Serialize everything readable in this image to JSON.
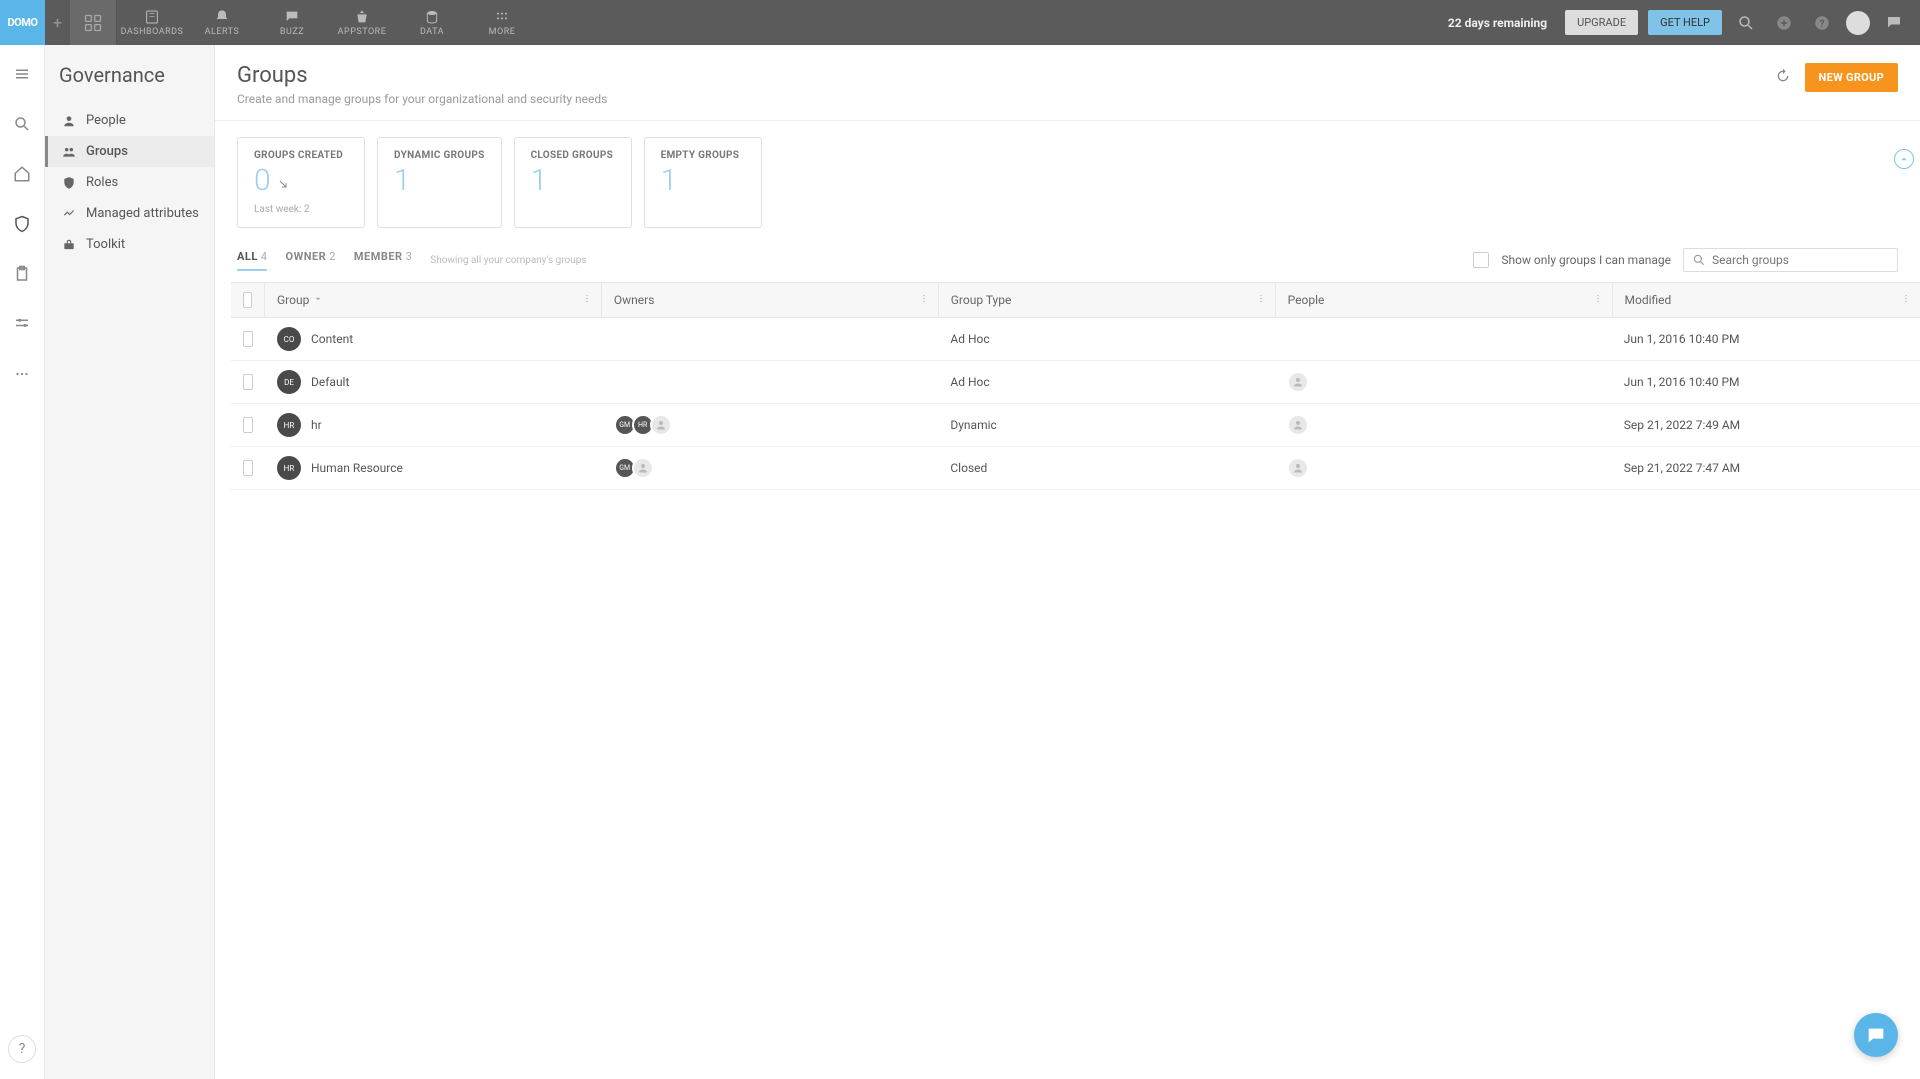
{
  "brand": "DOMO",
  "topnav": {
    "items": [
      {
        "label": "DASHBOARDS"
      },
      {
        "label": "ALERTS"
      },
      {
        "label": "BUZZ"
      },
      {
        "label": "APPSTORE"
      },
      {
        "label": "DATA"
      },
      {
        "label": "MORE"
      }
    ]
  },
  "trial": {
    "remaining": "22 days remaining",
    "upgrade": "UPGRADE",
    "gethelp": "GET HELP"
  },
  "sidebar": {
    "title": "Governance",
    "items": [
      {
        "label": "People"
      },
      {
        "label": "Groups"
      },
      {
        "label": "Roles"
      },
      {
        "label": "Managed attributes"
      },
      {
        "label": "Toolkit"
      }
    ]
  },
  "page": {
    "title": "Groups",
    "subtitle": "Create and manage groups for your organizational and security needs",
    "new_button": "NEW GROUP"
  },
  "stats": [
    {
      "label": "GROUPS CREATED",
      "value": "0",
      "sub": "Last week: 2",
      "trend": true
    },
    {
      "label": "DYNAMIC GROUPS",
      "value": "1"
    },
    {
      "label": "CLOSED GROUPS",
      "value": "1"
    },
    {
      "label": "EMPTY GROUPS",
      "value": "1"
    }
  ],
  "filters": {
    "tabs": [
      {
        "label": "ALL",
        "count": "4"
      },
      {
        "label": "OWNER",
        "count": "2"
      },
      {
        "label": "MEMBER",
        "count": "3"
      }
    ],
    "hint": "Showing all your company's groups",
    "manage_label": "Show only groups I can manage",
    "search_placeholder": "Search groups"
  },
  "table": {
    "columns": {
      "group": "Group",
      "owners": "Owners",
      "type": "Group Type",
      "people": "People",
      "modified": "Modified"
    },
    "rows": [
      {
        "badge": "CO",
        "name": "Content",
        "owners": [],
        "type": "Ad Hoc",
        "people": [],
        "modified": "Jun 1, 2016 10:40 PM"
      },
      {
        "badge": "DE",
        "name": "Default",
        "owners": [],
        "type": "Ad Hoc",
        "people": [
          "person"
        ],
        "modified": "Jun 1, 2016 10:40 PM"
      },
      {
        "badge": "HR",
        "name": "hr",
        "owners": [
          "GM",
          "HR",
          "person"
        ],
        "type": "Dynamic",
        "people": [
          "person"
        ],
        "modified": "Sep 21, 2022 7:49 AM"
      },
      {
        "badge": "HR",
        "name": "Human Resource",
        "owners": [
          "GM",
          "person"
        ],
        "type": "Closed",
        "people": [
          "person"
        ],
        "modified": "Sep 21, 2022 7:47 AM"
      }
    ]
  },
  "colors": {
    "accent": "#f7941e",
    "brand": "#5ab5e8",
    "stat": "#9bd1ec"
  }
}
